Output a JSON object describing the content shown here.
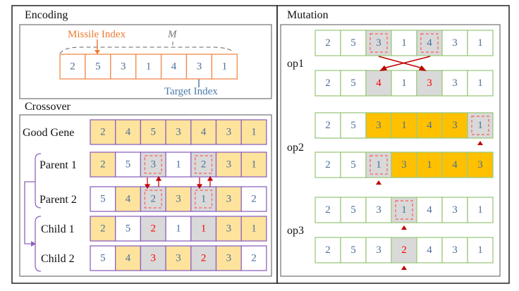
{
  "colors": {
    "orange_border": "#f08a4b",
    "purple_border": "#8e63bf",
    "green_border": "#9dc97f",
    "yellow_fill": "#fde39c",
    "orange_fill": "#ffc000",
    "gray_fill": "#d9d9d9",
    "number_text": "#4a6f9a",
    "red_text": "#ff0000",
    "arrow_red": "#c00000",
    "missile_label": "#f07a32",
    "target_label": "#4a7aa8"
  },
  "encoding": {
    "title": "Encoding",
    "missile_label": "Missile Index",
    "m_label": "M",
    "target_label": "Target Index",
    "values": [
      "2",
      "5",
      "3",
      "1",
      "4",
      "3",
      "1"
    ]
  },
  "crossover": {
    "title": "Crossover",
    "rows": [
      {
        "label": "Good Gene",
        "values": [
          "2",
          "4",
          "5",
          "3",
          "4",
          "3",
          "1"
        ],
        "fills": "yyyyyyy",
        "red": [],
        "dashed": []
      },
      {
        "label": "Parent 1",
        "values": [
          "2",
          "5",
          "3",
          "1",
          "2",
          "3",
          "1"
        ],
        "fills": "ywgwgyy",
        "red": [],
        "dashed": [
          2,
          4
        ]
      },
      {
        "label": "Parent 2",
        "values": [
          "5",
          "4",
          "2",
          "3",
          "1",
          "3",
          "2"
        ],
        "fills": "wygygyw",
        "red": [],
        "dashed": [
          2,
          4
        ]
      },
      {
        "label": "Child 1",
        "values": [
          "2",
          "5",
          "2",
          "1",
          "1",
          "3",
          "1"
        ],
        "fills": "ywgwgyy",
        "red": [
          2,
          4
        ],
        "dashed": []
      },
      {
        "label": "Child 2",
        "values": [
          "5",
          "4",
          "3",
          "3",
          "2",
          "3",
          "2"
        ],
        "fills": "wygygyw",
        "red": [
          2,
          4
        ],
        "dashed": []
      }
    ]
  },
  "mutation": {
    "title": "Mutation",
    "ops": [
      {
        "label": "op1",
        "rows": [
          {
            "values": [
              "2",
              "5",
              "3",
              "1",
              "4",
              "3",
              "1"
            ],
            "fills": "wwgwgww",
            "red": [],
            "dashed": [
              2,
              4
            ],
            "marker": null
          },
          {
            "values": [
              "2",
              "5",
              "4",
              "1",
              "3",
              "3",
              "1"
            ],
            "fills": "wwgwgww",
            "red": [
              2,
              4
            ],
            "dashed": [],
            "marker": null
          }
        ]
      },
      {
        "label": "op2",
        "rows": [
          {
            "values": [
              "2",
              "5",
              "3",
              "1",
              "4",
              "3",
              "1"
            ],
            "fills": "wwoooog",
            "red": [],
            "dashed": [
              6
            ],
            "marker": 6
          },
          {
            "values": [
              "2",
              "5",
              "1",
              "3",
              "1",
              "4",
              "3"
            ],
            "fills": "wwgoooo",
            "red": [],
            "dashed": [
              2
            ],
            "marker": 2
          }
        ]
      },
      {
        "label": "op3",
        "rows": [
          {
            "values": [
              "2",
              "5",
              "3",
              "1",
              "4",
              "3",
              "1"
            ],
            "fills": "wwwgwww",
            "red": [],
            "dashed": [
              3
            ],
            "marker": 3
          },
          {
            "values": [
              "2",
              "5",
              "3",
              "2",
              "4",
              "3",
              "1"
            ],
            "fills": "wwwgwww",
            "red": [
              3
            ],
            "dashed": [],
            "marker": 3
          }
        ]
      }
    ]
  }
}
